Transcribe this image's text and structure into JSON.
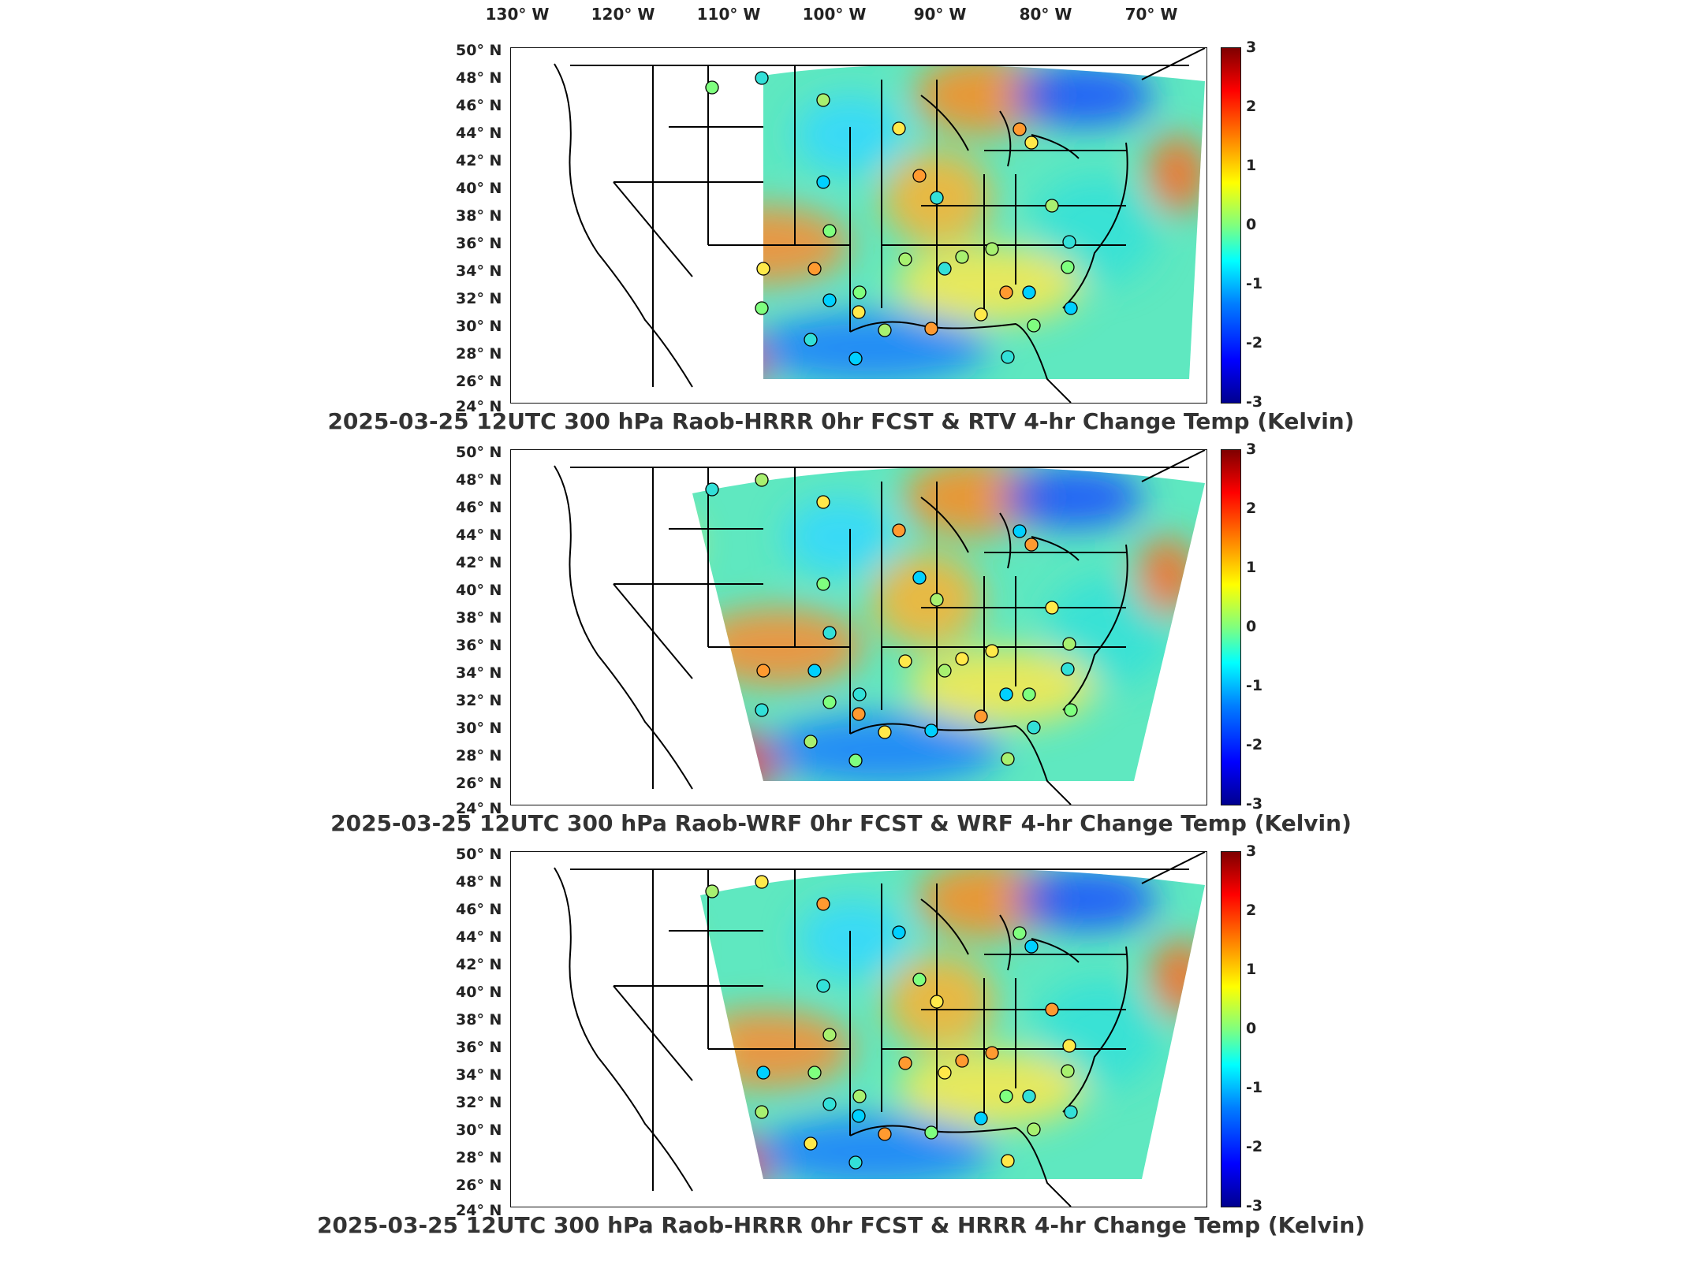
{
  "longitude_labels": [
    "130° W",
    "120° W",
    "110° W",
    "100° W",
    "90° W",
    "80° W",
    "70° W"
  ],
  "latitude_labels": [
    "50° N",
    "48° N",
    "46° N",
    "44° N",
    "42° N",
    "40° N",
    "38° N",
    "36° N",
    "34° N",
    "32° N",
    "30° N",
    "28° N",
    "26° N",
    "24° N"
  ],
  "colorbar": {
    "ticks": [
      "3",
      "2",
      "1",
      "0",
      "-1",
      "-2",
      "-3"
    ],
    "colormap": "jet",
    "range": [
      -3,
      3
    ]
  },
  "panels": [
    {
      "title": "2025-03-25 12UTC 300 hPa Raob-HRRR 0hr FCST & RTV 4-hr Change Temp (Kelvin)",
      "domain": "rtv"
    },
    {
      "title": "2025-03-25 12UTC 300 hPa Raob-WRF 0hr FCST & WRF 4-hr Change Temp (Kelvin)",
      "domain": "wrf"
    },
    {
      "title": "2025-03-25 12UTC 300 hPa Raob-HRRR 0hr FCST & HRRR 4-hr Change Temp (Kelvin)",
      "domain": "hrrr"
    }
  ]
}
